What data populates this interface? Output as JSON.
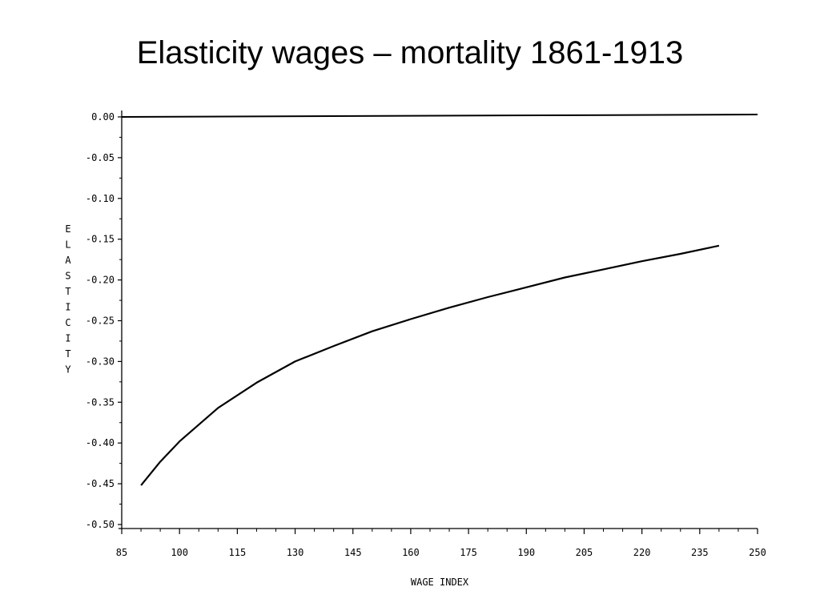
{
  "slide": {
    "title": "Elasticity wages – mortality 1861-1913"
  },
  "chart_data": {
    "type": "line",
    "title": "",
    "xlabel": "WAGE INDEX",
    "ylabel": "ELASTICITY",
    "xlim": [
      85,
      250
    ],
    "ylim": [
      -0.5,
      0.0
    ],
    "x_ticks": [
      85,
      100,
      115,
      130,
      145,
      160,
      175,
      190,
      205,
      220,
      235,
      250
    ],
    "x_tick_labels": [
      "85",
      "100",
      "115",
      "130",
      "145",
      "160",
      "175",
      "190",
      "205",
      "220",
      "235",
      "250"
    ],
    "y_ticks": [
      0.0,
      -0.05,
      -0.1,
      -0.15,
      -0.2,
      -0.25,
      -0.3,
      -0.35,
      -0.4,
      -0.45,
      -0.5
    ],
    "y_tick_labels": [
      "0.00",
      "-0.05",
      "-0.10",
      "-0.15",
      "-0.20",
      "-0.25",
      "-0.30",
      "-0.35",
      "-0.40",
      "-0.45",
      "-0.50"
    ],
    "grid": false,
    "series": [
      {
        "x": [
          90,
          95,
          100,
          110,
          120,
          130,
          140,
          150,
          160,
          170,
          180,
          190,
          200,
          210,
          220,
          230,
          240
        ],
        "y": [
          -0.452,
          -0.423,
          -0.398,
          -0.357,
          -0.326,
          -0.3,
          -0.281,
          -0.263,
          -0.248,
          -0.234,
          -0.221,
          -0.209,
          -0.197,
          -0.187,
          -0.177,
          -0.168,
          -0.158
        ]
      }
    ],
    "reference_line": {
      "y": 0.0
    }
  }
}
